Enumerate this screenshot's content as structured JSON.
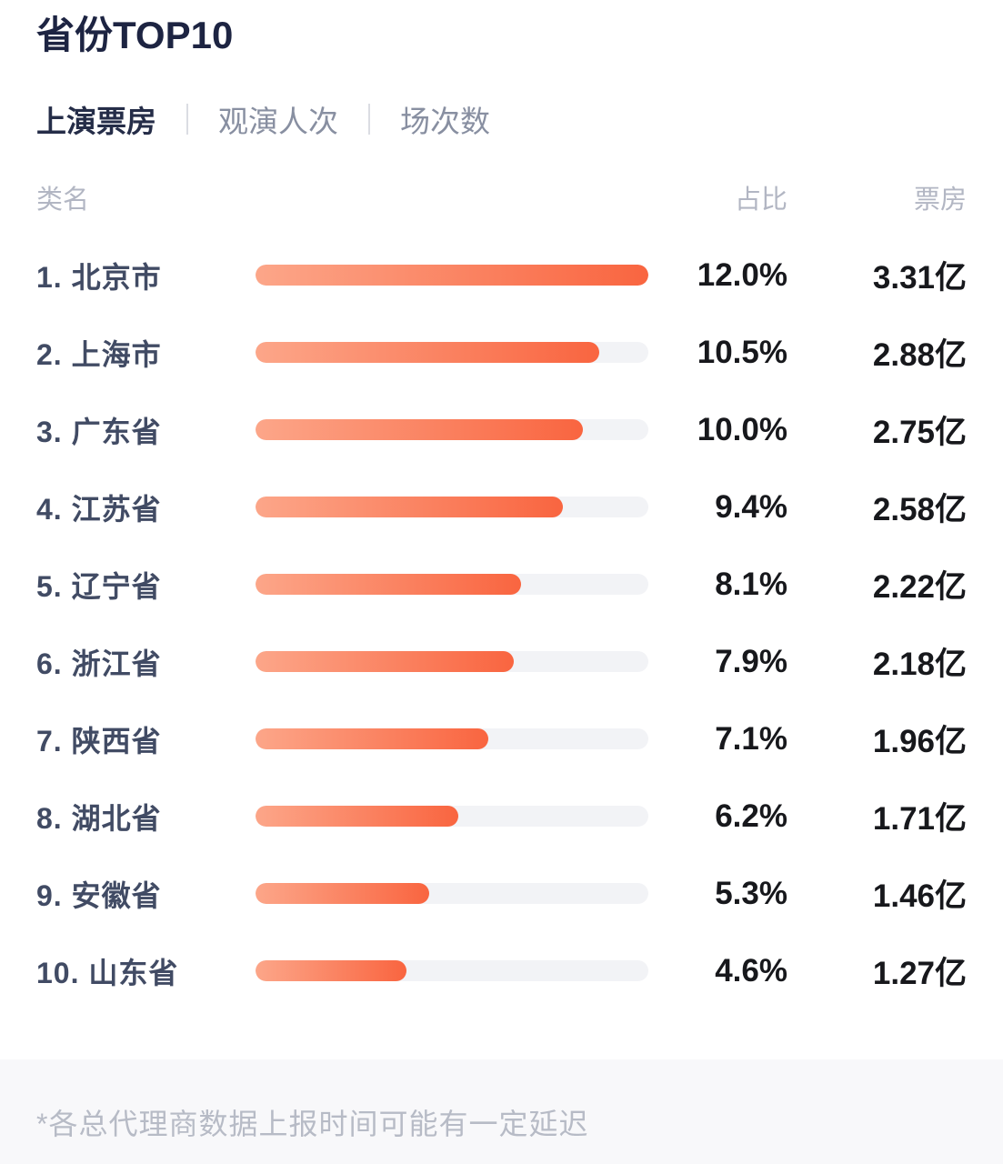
{
  "title": "省份TOP10",
  "tabs": [
    {
      "label": "上演票房",
      "active": true
    },
    {
      "label": "观演人次",
      "active": false
    },
    {
      "label": "场次数",
      "active": false
    }
  ],
  "columns": {
    "name": "类名",
    "share": "占比",
    "boxoffice": "票房"
  },
  "rows": [
    {
      "rank": "1",
      "name": "北京市",
      "share_label": "12.0%",
      "share_value": 12.0,
      "boxoffice": "3.31亿"
    },
    {
      "rank": "2",
      "name": "上海市",
      "share_label": "10.5%",
      "share_value": 10.5,
      "boxoffice": "2.88亿"
    },
    {
      "rank": "3",
      "name": "广东省",
      "share_label": "10.0%",
      "share_value": 10.0,
      "boxoffice": "2.75亿"
    },
    {
      "rank": "4",
      "name": "江苏省",
      "share_label": "9.4%",
      "share_value": 9.4,
      "boxoffice": "2.58亿"
    },
    {
      "rank": "5",
      "name": "辽宁省",
      "share_label": "8.1%",
      "share_value": 8.1,
      "boxoffice": "2.22亿"
    },
    {
      "rank": "6",
      "name": "浙江省",
      "share_label": "7.9%",
      "share_value": 7.9,
      "boxoffice": "2.18亿"
    },
    {
      "rank": "7",
      "name": "陕西省",
      "share_label": "7.1%",
      "share_value": 7.1,
      "boxoffice": "1.96亿"
    },
    {
      "rank": "8",
      "name": "湖北省",
      "share_label": "6.2%",
      "share_value": 6.2,
      "boxoffice": "1.71亿"
    },
    {
      "rank": "9",
      "name": "安徽省",
      "share_label": "5.3%",
      "share_value": 5.3,
      "boxoffice": "1.46亿"
    },
    {
      "rank": "10",
      "name": "山东省",
      "share_label": "4.6%",
      "share_value": 4.6,
      "boxoffice": "1.27亿"
    }
  ],
  "footnote": "*各总代理商数据上报时间可能有一定延迟",
  "colors": {
    "bar_gradient_start": "#FCA689",
    "bar_gradient_end": "#F96540",
    "bar_track": "#F2F3F6",
    "title_text": "#1D2442",
    "active_tab_text": "#252D48",
    "inactive_tab_text": "#888FA1",
    "row_label_text": "#414B64",
    "value_text": "#17181C",
    "column_header_text": "#B2B6C3",
    "footnote_text": "#B7BBC6",
    "footnote_band_bg": "#F8F8FA"
  },
  "chart_data": {
    "type": "bar",
    "orientation": "horizontal",
    "title": "省份TOP10（上演票房）",
    "categories": [
      "北京市",
      "上海市",
      "广东省",
      "江苏省",
      "辽宁省",
      "浙江省",
      "陕西省",
      "湖北省",
      "安徽省",
      "山东省"
    ],
    "series": [
      {
        "name": "占比(%)",
        "values": [
          12.0,
          10.5,
          10.0,
          9.4,
          8.1,
          7.9,
          7.1,
          6.2,
          5.3,
          4.6
        ]
      },
      {
        "name": "票房(亿)",
        "values": [
          3.31,
          2.88,
          2.75,
          2.58,
          2.22,
          2.18,
          1.96,
          1.71,
          1.46,
          1.27
        ]
      }
    ],
    "xlim": [
      0,
      12.0
    ],
    "grid": false,
    "legend_position": "none"
  }
}
